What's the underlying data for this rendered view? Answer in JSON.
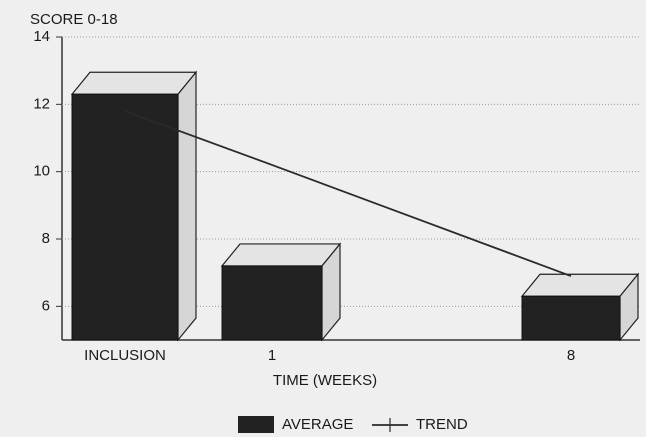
{
  "chart_data": {
    "type": "bar",
    "y_label": "SCORE 0-18",
    "x_label": "TIME (WEEKS)",
    "categories": [
      "INCLUSION",
      "1",
      "8"
    ],
    "series": [
      {
        "name": "AVERAGE",
        "color": "#222222",
        "kind": "bar",
        "values": [
          12.3,
          7.2,
          6.3
        ]
      },
      {
        "name": "TREND",
        "color": "#2a2a2a",
        "kind": "line",
        "values": [
          11.8,
          10.2,
          6.9
        ]
      }
    ],
    "ylim": [
      5,
      14
    ],
    "yticks": [
      6,
      8,
      10,
      12,
      14
    ],
    "grid": true
  }
}
